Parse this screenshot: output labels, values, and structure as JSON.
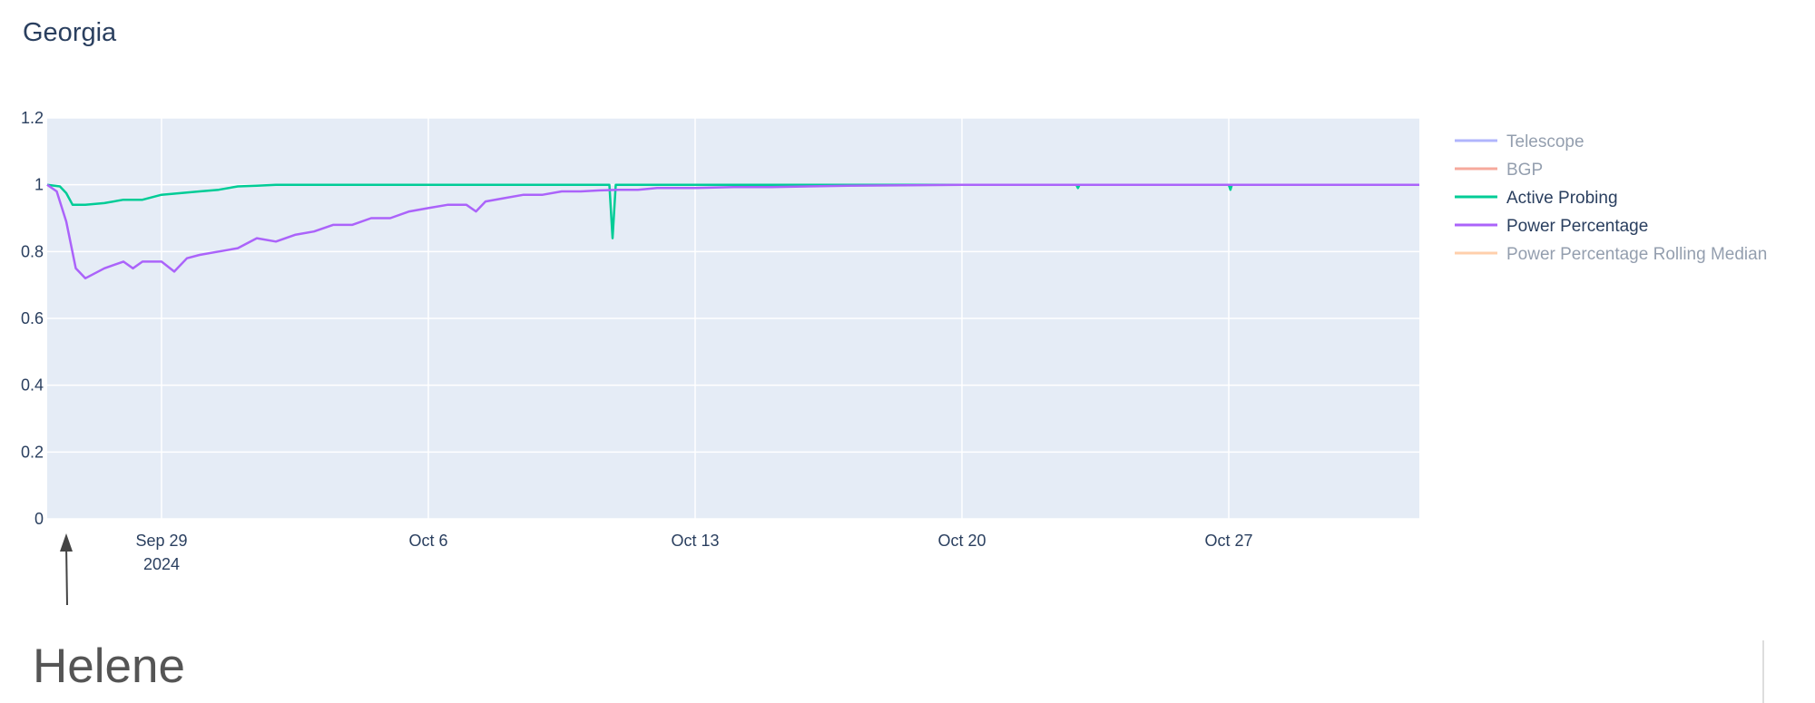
{
  "chart_data": {
    "type": "line",
    "title": "Georgia",
    "xlabel": "",
    "ylabel": "",
    "x_range": [
      "2024-09-26T00:00",
      "2024-11-01T00:00"
    ],
    "ylim": [
      0,
      1.2
    ],
    "yticks": [
      {
        "value": 0,
        "label": "0"
      },
      {
        "value": 0.2,
        "label": "0.2"
      },
      {
        "value": 0.4,
        "label": "0.4"
      },
      {
        "value": 0.6,
        "label": "0.6"
      },
      {
        "value": 0.8,
        "label": "0.8"
      },
      {
        "value": 1,
        "label": "1"
      },
      {
        "value": 1.2,
        "label": "1.2"
      }
    ],
    "xticks": [
      {
        "date": "2024-09-29",
        "label": "Sep 29",
        "sublabel": "2024"
      },
      {
        "date": "2024-10-06",
        "label": "Oct 6",
        "sublabel": ""
      },
      {
        "date": "2024-10-13",
        "label": "Oct 13",
        "sublabel": ""
      },
      {
        "date": "2024-10-20",
        "label": "Oct 20",
        "sublabel": ""
      },
      {
        "date": "2024-10-27",
        "label": "Oct 27",
        "sublabel": ""
      }
    ],
    "grid": true,
    "legend_position": "right",
    "series": [
      {
        "name": "Telescope",
        "color": "#636efa",
        "visible": false,
        "x": [],
        "y": []
      },
      {
        "name": "BGP",
        "color": "#ef553b",
        "visible": false,
        "x": [],
        "y": []
      },
      {
        "name": "Active Probing",
        "color": "#00cc96",
        "visible": true,
        "x": [
          "2024-09-26T00:00",
          "2024-09-26T08:00",
          "2024-09-26T12:00",
          "2024-09-26T16:00",
          "2024-09-27T00:00",
          "2024-09-27T12:00",
          "2024-09-28T00:00",
          "2024-09-28T12:00",
          "2024-09-29T00:00",
          "2024-09-29T12:00",
          "2024-09-30T00:00",
          "2024-09-30T12:00",
          "2024-10-01T00:00",
          "2024-10-01T12:00",
          "2024-10-02T00:00",
          "2024-10-05T00:00",
          "2024-10-10T00:00",
          "2024-10-10T18:00",
          "2024-10-10T20:00",
          "2024-10-10T22:00",
          "2024-10-11T06:00",
          "2024-10-15T00:00",
          "2024-10-23T00:00",
          "2024-10-23T01:00",
          "2024-10-23T02:00",
          "2024-10-27T00:00",
          "2024-10-27T01:00",
          "2024-10-27T02:00",
          "2024-11-01T00:00"
        ],
        "y": [
          1.0,
          0.995,
          0.975,
          0.94,
          0.94,
          0.945,
          0.955,
          0.955,
          0.97,
          0.975,
          0.98,
          0.985,
          0.995,
          0.997,
          1.0,
          1.0,
          1.0,
          1.0,
          0.84,
          1.0,
          1.0,
          1.0,
          1.0,
          0.99,
          1.0,
          1.0,
          0.985,
          1.0,
          1.0
        ]
      },
      {
        "name": "Power Percentage",
        "color": "#ab63fa",
        "visible": true,
        "x": [
          "2024-09-26T00:00",
          "2024-09-26T06:00",
          "2024-09-26T12:00",
          "2024-09-26T18:00",
          "2024-09-27T00:00",
          "2024-09-27T12:00",
          "2024-09-28T00:00",
          "2024-09-28T06:00",
          "2024-09-28T12:00",
          "2024-09-29T00:00",
          "2024-09-29T08:00",
          "2024-09-29T16:00",
          "2024-09-30T00:00",
          "2024-09-30T12:00",
          "2024-10-01T00:00",
          "2024-10-01T12:00",
          "2024-10-02T00:00",
          "2024-10-02T12:00",
          "2024-10-03T00:00",
          "2024-10-03T12:00",
          "2024-10-04T00:00",
          "2024-10-04T12:00",
          "2024-10-05T00:00",
          "2024-10-05T12:00",
          "2024-10-06T00:00",
          "2024-10-06T12:00",
          "2024-10-07T00:00",
          "2024-10-07T06:00",
          "2024-10-07T12:00",
          "2024-10-08T00:00",
          "2024-10-08T12:00",
          "2024-10-09T00:00",
          "2024-10-09T12:00",
          "2024-10-10T00:00",
          "2024-10-10T12:00",
          "2024-10-11T00:00",
          "2024-10-11T12:00",
          "2024-10-12T00:00",
          "2024-10-13T00:00",
          "2024-10-14T00:00",
          "2024-10-15T00:00",
          "2024-10-17T00:00",
          "2024-10-20T00:00",
          "2024-10-27T00:00",
          "2024-11-01T00:00"
        ],
        "y": [
          1.0,
          0.98,
          0.89,
          0.75,
          0.72,
          0.75,
          0.77,
          0.75,
          0.77,
          0.77,
          0.74,
          0.78,
          0.79,
          0.8,
          0.81,
          0.84,
          0.83,
          0.85,
          0.86,
          0.88,
          0.88,
          0.9,
          0.9,
          0.92,
          0.93,
          0.94,
          0.94,
          0.92,
          0.95,
          0.96,
          0.97,
          0.97,
          0.98,
          0.98,
          0.983,
          0.985,
          0.985,
          0.99,
          0.99,
          0.993,
          0.993,
          0.997,
          1.0,
          1.0,
          1.0
        ]
      },
      {
        "name": "Power Percentage Rolling Median",
        "color": "#ffa15a",
        "visible": false,
        "x": [],
        "y": []
      }
    ],
    "colors": {
      "plot_bg": "#e5ecf6",
      "grid": "#ffffff",
      "tick_text": "#2a3f5f",
      "legend_hidden_text": "#a5afc2"
    }
  },
  "annotations": [
    {
      "text": "Helene",
      "x": "2024-09-26T12:00"
    }
  ]
}
